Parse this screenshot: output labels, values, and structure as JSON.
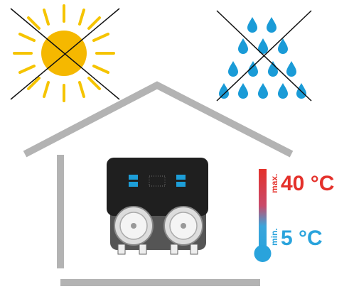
{
  "labels": {
    "max_label": "max.",
    "max_temp": "40 °C",
    "min_label": "min.",
    "min_temp": "5 °C"
  }
}
